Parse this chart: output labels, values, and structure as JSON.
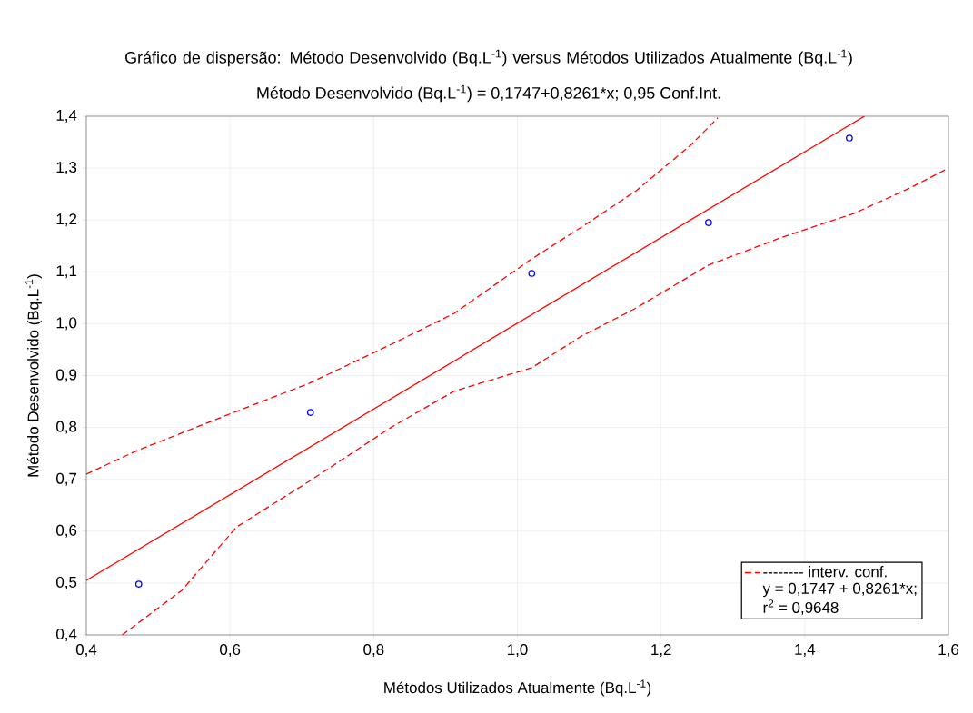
{
  "chart_data": {
    "type": "scatter",
    "title": "Gráfico de dispersão: Método Desenvolvido (Bq.L$^{-1}$) versus Métodos Utilizados Atualmente (Bq.L$^{-1}$)",
    "subtitle": "Método Desenvolvido (Bq.L$^{-1}$) = 0,1747+0,8261*x; 0,95 Conf.Int.",
    "xlabel": "Métodos Utilizados Atualmente (Bq.L$^{-1}$)",
    "ylabel": "Método Desenvolvido (Bq.L$^{-1}$)",
    "xlim": [
      0.4,
      1.6
    ],
    "ylim": [
      0.4,
      1.4
    ],
    "xticks": [
      {
        "value": 0.4,
        "label": "0,4"
      },
      {
        "value": 0.6,
        "label": "0,6"
      },
      {
        "value": 0.8,
        "label": "0,8"
      },
      {
        "value": 1.0,
        "label": "1,0"
      },
      {
        "value": 1.2,
        "label": "1,2"
      },
      {
        "value": 1.4,
        "label": "1,4"
      },
      {
        "value": 1.6,
        "label": "1,6"
      }
    ],
    "yticks": [
      {
        "value": 0.4,
        "label": "0,4"
      },
      {
        "value": 0.5,
        "label": "0,5"
      },
      {
        "value": 0.6,
        "label": "0,6"
      },
      {
        "value": 0.7,
        "label": "0,7"
      },
      {
        "value": 0.8,
        "label": "0,8"
      },
      {
        "value": 0.9,
        "label": "0,9"
      },
      {
        "value": 1.0,
        "label": "1,0"
      },
      {
        "value": 1.1,
        "label": "1,1"
      },
      {
        "value": 1.2,
        "label": "1,2"
      },
      {
        "value": 1.3,
        "label": "1,3"
      },
      {
        "value": 1.4,
        "label": "1,4"
      }
    ],
    "grid": true,
    "legend": "bottom right",
    "annotations": [
      "y = 0,1747 + 0,8261*x;",
      "r$^{2}$ = 0,9648"
    ],
    "series": [
      {
        "color": "#0000ff",
        "marker": "circle",
        "x": [
          0.473,
          0.712,
          1.02,
          1.266,
          1.462
        ],
        "values": [
          0.498,
          0.829,
          1.097,
          1.195,
          1.358
        ]
      },
      {
        "type": "line",
        "color": "#ff0000",
        "marker": "none",
        "line_style": "solid",
        "x": [
          0.4,
          1.483
        ],
        "values": [
          0.505,
          1.4
        ]
      },
      {
        "type": "line",
        "name": "-------- interv. conf.",
        "color": "#ff0000",
        "marker": "none",
        "line_style": "dashed",
        "x": [
          0.4,
          0.47,
          0.596,
          0.71,
          0.824,
          0.912,
          1.02,
          1.089,
          1.165,
          1.241,
          1.279
        ],
        "values": [
          0.71,
          0.755,
          0.824,
          0.885,
          0.96,
          1.02,
          1.125,
          1.186,
          1.256,
          1.344,
          1.397
        ]
      },
      {
        "type": "line",
        "color": "#ff0000",
        "marker": "none",
        "line_style": "dashed",
        "x": [
          0.45,
          0.533,
          0.609,
          0.71,
          0.824,
          0.912,
          1.02,
          1.089,
          1.165,
          1.266,
          1.367,
          1.469,
          1.544,
          1.6
        ],
        "values": [
          0.4,
          0.486,
          0.608,
          0.696,
          0.8,
          0.87,
          0.915,
          0.976,
          1.03,
          1.113,
          1.166,
          1.213,
          1.26,
          1.3
        ]
      }
    ]
  }
}
